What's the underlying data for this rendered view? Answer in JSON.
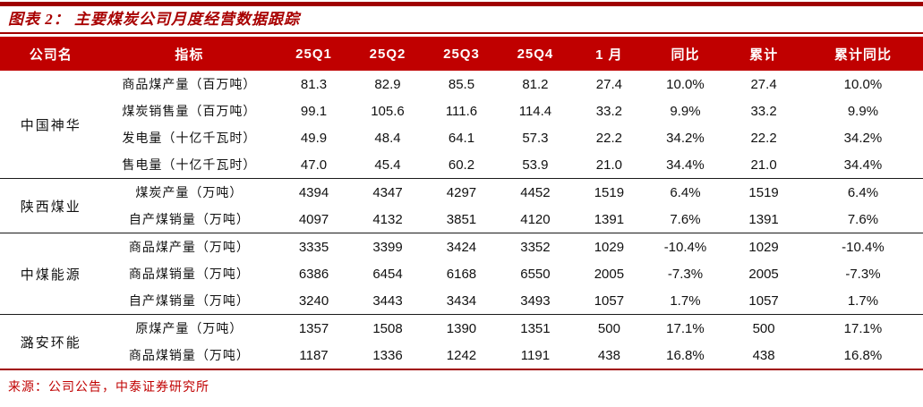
{
  "title": "图表 2： 主要煤炭公司月度经营数据跟踪",
  "source": "来源：公司公告，中泰证券研究所",
  "colors": {
    "rule": "#a00000",
    "title": "#a80000",
    "header-bg": "#c00000",
    "source": "#c00000"
  },
  "table": {
    "headers": [
      "公司名",
      "指标",
      "25Q1",
      "25Q2",
      "25Q3",
      "25Q4",
      "1 月",
      "同比",
      "累计",
      "累计同比"
    ],
    "sections": [
      {
        "company": "中国神华",
        "rows": [
          {
            "indicator": "商品煤产量（百万吨）",
            "values": [
              "81.3",
              "82.9",
              "85.5",
              "81.2",
              "27.4",
              "10.0%",
              "27.4",
              "10.0%"
            ]
          },
          {
            "indicator": "煤炭销售量（百万吨）",
            "values": [
              "99.1",
              "105.6",
              "111.6",
              "114.4",
              "33.2",
              "9.9%",
              "33.2",
              "9.9%"
            ]
          },
          {
            "indicator": "发电量（十亿千瓦时）",
            "values": [
              "49.9",
              "48.4",
              "64.1",
              "57.3",
              "22.2",
              "34.2%",
              "22.2",
              "34.2%"
            ]
          },
          {
            "indicator": "售电量（十亿千瓦时）",
            "values": [
              "47.0",
              "45.4",
              "60.2",
              "53.9",
              "21.0",
              "34.4%",
              "21.0",
              "34.4%"
            ]
          }
        ]
      },
      {
        "company": "陕西煤业",
        "rows": [
          {
            "indicator": "煤炭产量（万吨）",
            "values": [
              "4394",
              "4347",
              "4297",
              "4452",
              "1519",
              "6.4%",
              "1519",
              "6.4%"
            ]
          },
          {
            "indicator": "自产煤销量（万吨）",
            "values": [
              "4097",
              "4132",
              "3851",
              "4120",
              "1391",
              "7.6%",
              "1391",
              "7.6%"
            ]
          }
        ]
      },
      {
        "company": "中煤能源",
        "rows": [
          {
            "indicator": "商品煤产量（万吨）",
            "values": [
              "3335",
              "3399",
              "3424",
              "3352",
              "1029",
              "-10.4%",
              "1029",
              "-10.4%"
            ]
          },
          {
            "indicator": "商品煤销量（万吨）",
            "values": [
              "6386",
              "6454",
              "6168",
              "6550",
              "2005",
              "-7.3%",
              "2005",
              "-7.3%"
            ]
          },
          {
            "indicator": "自产煤销量（万吨）",
            "values": [
              "3240",
              "3443",
              "3434",
              "3493",
              "1057",
              "1.7%",
              "1057",
              "1.7%"
            ]
          }
        ]
      },
      {
        "company": "潞安环能",
        "rows": [
          {
            "indicator": "原煤产量（万吨）",
            "values": [
              "1357",
              "1508",
              "1390",
              "1351",
              "500",
              "17.1%",
              "500",
              "17.1%"
            ]
          },
          {
            "indicator": "商品煤销量（万吨）",
            "values": [
              "1187",
              "1336",
              "1242",
              "1191",
              "438",
              "16.8%",
              "438",
              "16.8%"
            ]
          }
        ]
      }
    ]
  }
}
